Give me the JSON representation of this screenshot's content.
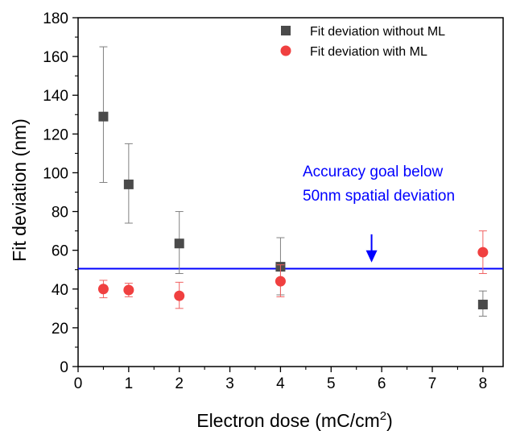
{
  "chart_data": {
    "type": "scatter",
    "xlabel": "Electron dose (mC/cm",
    "xlabel_sup": "2",
    "xlabel_close": ")",
    "ylabel": "Fit deviation (nm)",
    "xlim": [
      0,
      8.4
    ],
    "ylim": [
      0,
      180
    ],
    "x_ticks": [
      {
        "value": 0,
        "label": "0"
      },
      {
        "value": 1,
        "label": "1"
      },
      {
        "value": 2,
        "label": "2"
      },
      {
        "value": 3,
        "label": "3"
      },
      {
        "value": 4,
        "label": "4"
      },
      {
        "value": 5,
        "label": "5"
      },
      {
        "value": 6,
        "label": "6"
      },
      {
        "value": 7,
        "label": "7"
      },
      {
        "value": 8,
        "label": "8"
      }
    ],
    "y_ticks": [
      {
        "value": 0,
        "label": "0"
      },
      {
        "value": 20,
        "label": "20"
      },
      {
        "value": 40,
        "label": "40"
      },
      {
        "value": 60,
        "label": "60"
      },
      {
        "value": 80,
        "label": "80"
      },
      {
        "value": 100,
        "label": "100"
      },
      {
        "value": 120,
        "label": "120"
      },
      {
        "value": 140,
        "label": "140"
      },
      {
        "value": 160,
        "label": "160"
      },
      {
        "value": 180,
        "label": "180"
      }
    ],
    "grid": false,
    "legend_position": "top-right",
    "series": [
      {
        "name": "Fit deviation without ML",
        "marker": "square",
        "color": "#4a4a4a",
        "error_color": "#808080",
        "points": [
          {
            "x": 0.5,
            "y": 129,
            "err_low": 95,
            "err_high": 165
          },
          {
            "x": 1,
            "y": 94,
            "err_low": 74,
            "err_high": 115
          },
          {
            "x": 2,
            "y": 63.5,
            "err_low": 48,
            "err_high": 80
          },
          {
            "x": 4,
            "y": 51.5,
            "err_low": 37,
            "err_high": 66.5
          },
          {
            "x": 8,
            "y": 32,
            "err_low": 26,
            "err_high": 39
          }
        ]
      },
      {
        "name": "Fit deviation with ML",
        "marker": "circle",
        "color": "#f04040",
        "error_color": "#f06060",
        "points": [
          {
            "x": 0.5,
            "y": 40,
            "err_low": 35.5,
            "err_high": 44.5
          },
          {
            "x": 1,
            "y": 39.5,
            "err_low": 36,
            "err_high": 43
          },
          {
            "x": 2,
            "y": 36.5,
            "err_low": 30,
            "err_high": 43.5
          },
          {
            "x": 4,
            "y": 44,
            "err_low": 36,
            "err_high": 52.5
          },
          {
            "x": 8,
            "y": 59,
            "err_low": 48,
            "err_high": 70
          }
        ]
      }
    ],
    "reference_line": {
      "y": 50.5,
      "color": "#0000ff"
    },
    "annotation": {
      "lines": [
        "Accuracy goal below",
        "50nm spatial deviation"
      ],
      "color": "#0000ff",
      "arrow_x": 5.8,
      "arrow_from_y": 62,
      "arrow_to_y": 55
    }
  }
}
